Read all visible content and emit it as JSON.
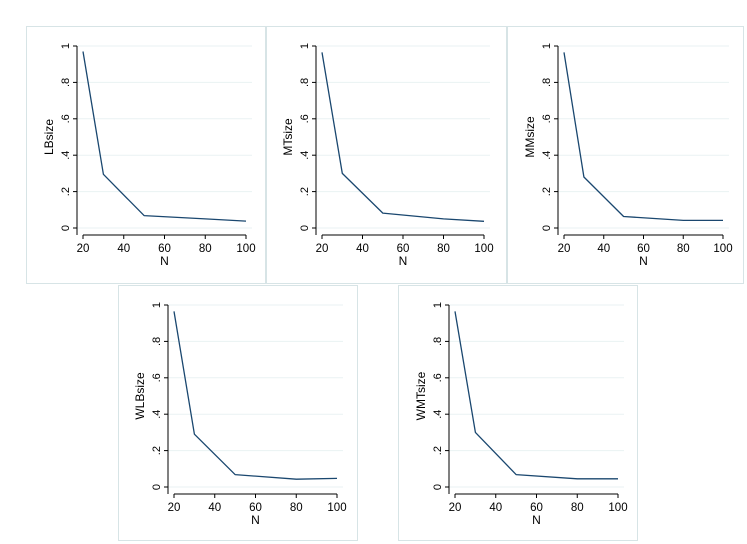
{
  "chart_data": [
    {
      "type": "line",
      "title": "",
      "xlabel": "N",
      "ylabel": "LBsize",
      "x": [
        20,
        30,
        50,
        80,
        100
      ],
      "y": [
        0.97,
        0.295,
        0.068,
        0.05,
        0.038
      ],
      "xlim": [
        20,
        100
      ],
      "ylim": [
        0,
        1
      ],
      "xticks": [
        20,
        40,
        60,
        80,
        100
      ],
      "xtick_labels": [
        "20",
        "40",
        "60",
        "80",
        "100"
      ],
      "yticks": [
        0,
        0.2,
        0.4,
        0.6,
        0.8,
        1
      ],
      "ytick_labels": [
        "0",
        ".2",
        ".4",
        ".6",
        ".8",
        "1"
      ],
      "line_color": "#1a476f",
      "grid": true
    },
    {
      "type": "line",
      "title": "",
      "xlabel": "N",
      "ylabel": "MTsize",
      "x": [
        20,
        30,
        50,
        80,
        100
      ],
      "y": [
        0.965,
        0.3,
        0.082,
        0.05,
        0.037
      ],
      "xlim": [
        20,
        100
      ],
      "ylim": [
        0,
        1
      ],
      "xticks": [
        20,
        40,
        60,
        80,
        100
      ],
      "xtick_labels": [
        "20",
        "40",
        "60",
        "80",
        "100"
      ],
      "yticks": [
        0,
        0.2,
        0.4,
        0.6,
        0.8,
        1
      ],
      "ytick_labels": [
        "0",
        ".2",
        ".4",
        ".6",
        ".8",
        "1"
      ],
      "line_color": "#1a476f",
      "grid": true
    },
    {
      "type": "line",
      "title": "",
      "xlabel": "N",
      "ylabel": "MMsize",
      "x": [
        20,
        30,
        50,
        80,
        100
      ],
      "y": [
        0.965,
        0.28,
        0.063,
        0.042,
        0.042
      ],
      "xlim": [
        20,
        100
      ],
      "ylim": [
        0,
        1
      ],
      "xticks": [
        20,
        40,
        60,
        80,
        100
      ],
      "xtick_labels": [
        "20",
        "40",
        "60",
        "80",
        "100"
      ],
      "yticks": [
        0,
        0.2,
        0.4,
        0.6,
        0.8,
        1
      ],
      "ytick_labels": [
        "0",
        ".2",
        ".4",
        ".6",
        ".8",
        "1"
      ],
      "line_color": "#1a476f",
      "grid": true
    },
    {
      "type": "line",
      "title": "",
      "xlabel": "N",
      "ylabel": "WLBsize",
      "x": [
        20,
        30,
        50,
        80,
        100
      ],
      "y": [
        0.965,
        0.29,
        0.068,
        0.043,
        0.047
      ],
      "xlim": [
        20,
        100
      ],
      "ylim": [
        0,
        1
      ],
      "xticks": [
        20,
        40,
        60,
        80,
        100
      ],
      "xtick_labels": [
        "20",
        "40",
        "60",
        "80",
        "100"
      ],
      "yticks": [
        0,
        0.2,
        0.4,
        0.6,
        0.8,
        1
      ],
      "ytick_labels": [
        "0",
        ".2",
        ".4",
        ".6",
        ".8",
        "1"
      ],
      "line_color": "#1a476f",
      "grid": true
    },
    {
      "type": "line",
      "title": "",
      "xlabel": "N",
      "ylabel": "WMTsize",
      "x": [
        20,
        30,
        50,
        80,
        100
      ],
      "y": [
        0.965,
        0.3,
        0.068,
        0.045,
        0.045
      ],
      "xlim": [
        20,
        100
      ],
      "ylim": [
        0,
        1
      ],
      "xticks": [
        20,
        40,
        60,
        80,
        100
      ],
      "xtick_labels": [
        "20",
        "40",
        "60",
        "80",
        "100"
      ],
      "yticks": [
        0,
        0.2,
        0.4,
        0.6,
        0.8,
        1
      ],
      "ytick_labels": [
        "0",
        ".2",
        ".4",
        ".6",
        ".8",
        "1"
      ],
      "line_color": "#1a476f",
      "grid": true
    }
  ]
}
